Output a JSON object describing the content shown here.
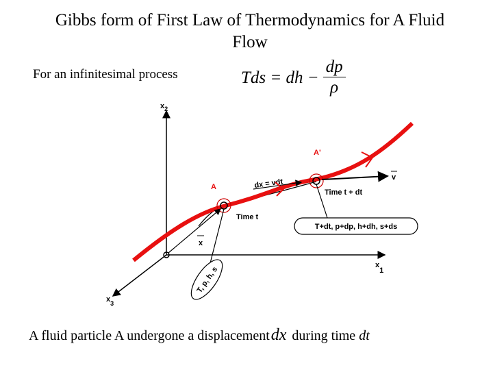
{
  "title": "Gibbs form of First Law of Thermodynamics for A Fluid Flow",
  "equation_intro": "For an infinitesimal process",
  "equation": {
    "lhs": "Tds = dh −",
    "numerator": "dp",
    "denominator": "ρ"
  },
  "diagram": {
    "axes": [
      {
        "base": "x",
        "sub": "2"
      },
      {
        "base": "x",
        "sub": "1"
      },
      {
        "base": "x",
        "sub": "3"
      }
    ],
    "particles": [
      "A",
      "A'"
    ],
    "position_vector": "x",
    "displacement": "dx = vdt",
    "velocity": "v",
    "time_t": "Time t",
    "time_t_dt": "Time t + dt",
    "state_t": "T, p, h, s",
    "state_t_dt": "T+dt, p+dp, h+dh, s+ds"
  },
  "caption": {
    "text": "A fluid particle A undergone a displacement",
    "symbol": "dx",
    "suffix": "during time ",
    "suffix_italic": "dt"
  }
}
